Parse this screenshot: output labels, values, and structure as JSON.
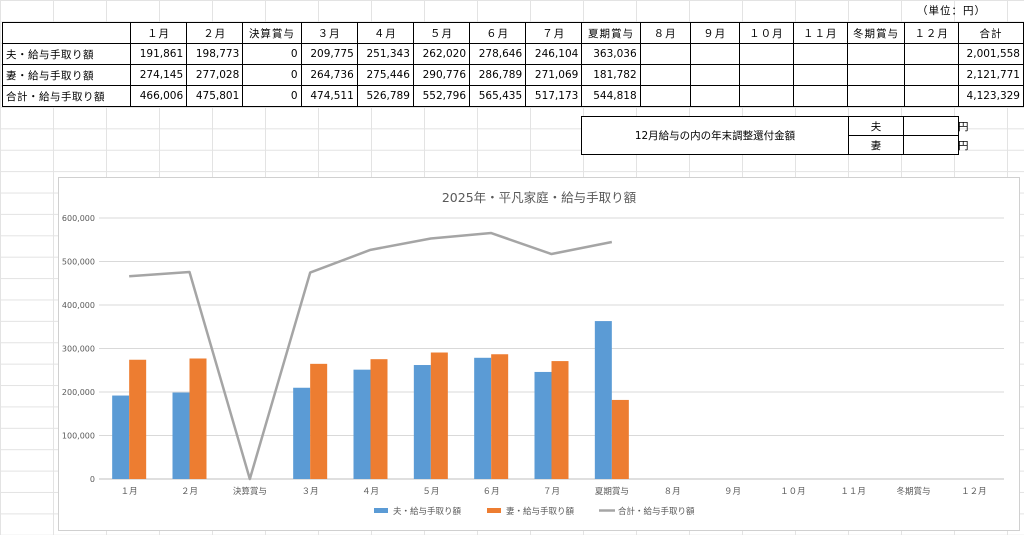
{
  "sheet": {
    "unit_label": "（単位：円）",
    "columns": [
      "１月",
      "２月",
      "決算賞与",
      "３月",
      "４月",
      "５月",
      "６月",
      "７月",
      "夏期賞与",
      "８月",
      "９月",
      "１０月",
      "１１月",
      "冬期賞与",
      "１２月",
      "合計"
    ],
    "rows": [
      {
        "label": "夫・給与手取り額",
        "cells": [
          "191,861",
          "198,773",
          "0",
          "209,775",
          "251,343",
          "262,020",
          "278,646",
          "246,104",
          "363,036",
          "",
          "",
          "",
          "",
          "",
          "",
          "2,001,558"
        ]
      },
      {
        "label": "妻・給与手取り額",
        "cells": [
          "274,145",
          "277,028",
          "0",
          "264,736",
          "275,446",
          "290,776",
          "286,789",
          "271,069",
          "181,782",
          "",
          "",
          "",
          "",
          "",
          "",
          "2,121,771"
        ]
      },
      {
        "label": "合計・給与手取り額",
        "cells": [
          "466,006",
          "475,801",
          "0",
          "474,511",
          "526,789",
          "552,796",
          "565,435",
          "517,173",
          "544,818",
          "",
          "",
          "",
          "",
          "",
          "",
          "4,123,329"
        ]
      }
    ]
  },
  "refund": {
    "label": "12月給与の内の年末調整還付金額",
    "husband": "夫",
    "wife": "妻",
    "yen": "円"
  },
  "chart_data": {
    "type": "bar",
    "title": "2025年・平凡家庭・給与手取り額",
    "categories": [
      "１月",
      "２月",
      "決算賞与",
      "３月",
      "４月",
      "５月",
      "６月",
      "７月",
      "夏期賞与",
      "８月",
      "９月",
      "１０月",
      "１１月",
      "冬期賞与",
      "１２月"
    ],
    "ylim": [
      0,
      600000
    ],
    "yticks": [
      "0",
      "100,000",
      "200,000",
      "300,000",
      "400,000",
      "500,000",
      "600,000"
    ],
    "grid": true,
    "legend_position": "bottom",
    "series": [
      {
        "name": "夫・給与手取り額",
        "type": "bar",
        "color": "#5b9bd5",
        "values": [
          191861,
          198773,
          0,
          209775,
          251343,
          262020,
          278646,
          246104,
          363036,
          null,
          null,
          null,
          null,
          null,
          null
        ]
      },
      {
        "name": "妻・給与手取り額",
        "type": "bar",
        "color": "#ed7d31",
        "values": [
          274145,
          277028,
          0,
          264736,
          275446,
          290776,
          286789,
          271069,
          181782,
          null,
          null,
          null,
          null,
          null,
          null
        ]
      },
      {
        "name": "合計・給与手取り額",
        "type": "line",
        "color": "#a5a5a5",
        "values": [
          466006,
          475801,
          0,
          474511,
          526789,
          552796,
          565435,
          517173,
          544818,
          null,
          null,
          null,
          null,
          null,
          null
        ]
      }
    ]
  }
}
